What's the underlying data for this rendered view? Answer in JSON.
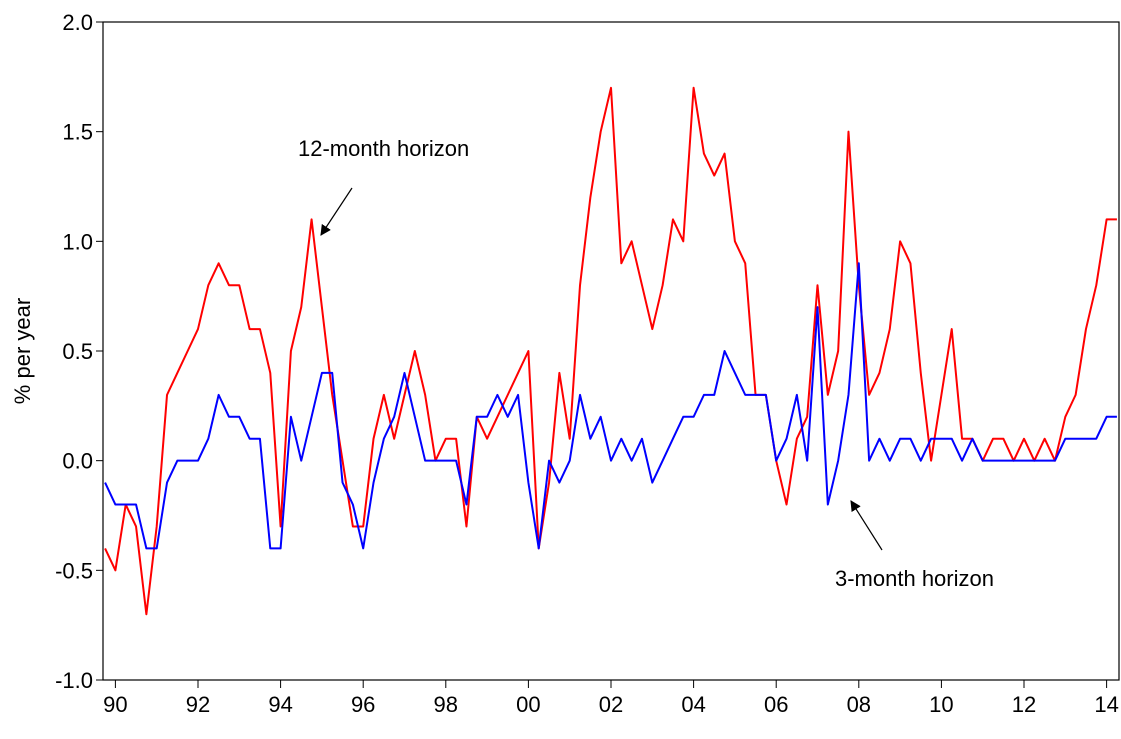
{
  "chart_data": {
    "type": "line",
    "y_label": "% per year",
    "annotations": [
      "12-month horizon",
      "3-month horizon"
    ],
    "xlim": [
      1989.7,
      2014.3
    ],
    "ylim": [
      -1,
      2
    ],
    "xticks": [
      {
        "value": 1990,
        "label": "90"
      },
      {
        "value": 1992,
        "label": "92"
      },
      {
        "value": 1994,
        "label": "94"
      },
      {
        "value": 1996,
        "label": "96"
      },
      {
        "value": 1998,
        "label": "98"
      },
      {
        "value": 2000,
        "label": "00"
      },
      {
        "value": 2002,
        "label": "02"
      },
      {
        "value": 2004,
        "label": "04"
      },
      {
        "value": 2006,
        "label": "06"
      },
      {
        "value": 2008,
        "label": "08"
      },
      {
        "value": 2010,
        "label": "10"
      },
      {
        "value": 2012,
        "label": "12"
      },
      {
        "value": 2014,
        "label": "14"
      }
    ],
    "yticks": [
      {
        "value": -1,
        "label": "-1.0"
      },
      -0.5,
      {
        "value": 0,
        "label": "0.0"
      },
      0.5,
      {
        "value": 1,
        "label": "1.0"
      },
      1.5,
      {
        "value": 2,
        "label": "2.0"
      }
    ],
    "x": [
      1989.75,
      1990.0,
      1990.25,
      1990.5,
      1990.75,
      1991.0,
      1991.25,
      1991.5,
      1991.75,
      1992.0,
      1992.25,
      1992.5,
      1992.75,
      1993.0,
      1993.25,
      1993.5,
      1993.75,
      1994.0,
      1994.25,
      1994.5,
      1994.75,
      1995.0,
      1995.25,
      1995.5,
      1995.75,
      1996.0,
      1996.25,
      1996.5,
      1996.75,
      1997.0,
      1997.25,
      1997.5,
      1997.75,
      1998.0,
      1998.25,
      1998.5,
      1998.75,
      1999.0,
      1999.25,
      1999.5,
      1999.75,
      2000.0,
      2000.25,
      2000.5,
      2000.75,
      2001.0,
      2001.25,
      2001.5,
      2001.75,
      2002.0,
      2002.25,
      2002.5,
      2002.75,
      2003.0,
      2003.25,
      2003.5,
      2003.75,
      2004.0,
      2004.25,
      2004.5,
      2004.75,
      2005.0,
      2005.25,
      2005.5,
      2005.75,
      2006.0,
      2006.25,
      2006.5,
      2006.75,
      2007.0,
      2007.25,
      2007.5,
      2007.75,
      2008.0,
      2008.25,
      2008.5,
      2008.75,
      2009.0,
      2009.25,
      2009.5,
      2009.75,
      2010.0,
      2010.25,
      2010.5,
      2010.75,
      2011.0,
      2011.25,
      2011.5,
      2011.75,
      2012.0,
      2012.25,
      2012.5,
      2012.75,
      2013.0,
      2013.25,
      2013.5,
      2013.75,
      2014.0,
      2014.25
    ],
    "series": [
      {
        "name": "12-month horizon",
        "color": "#ff0000",
        "values": [
          -0.4,
          -0.5,
          -0.2,
          -0.3,
          -0.7,
          -0.3,
          0.3,
          0.4,
          0.5,
          0.6,
          0.8,
          0.9,
          0.8,
          0.8,
          0.6,
          0.6,
          0.4,
          -0.3,
          0.5,
          0.7,
          1.1,
          0.7,
          0.3,
          0.0,
          -0.3,
          -0.3,
          0.1,
          0.3,
          0.1,
          0.3,
          0.5,
          0.3,
          0.0,
          0.1,
          0.1,
          -0.3,
          0.2,
          0.1,
          0.2,
          0.3,
          0.4,
          0.5,
          -0.4,
          -0.1,
          0.4,
          0.1,
          0.8,
          1.2,
          1.5,
          1.7,
          0.9,
          1.0,
          0.8,
          0.6,
          0.8,
          1.1,
          1.0,
          1.7,
          1.4,
          1.3,
          1.4,
          1.0,
          0.9,
          0.3,
          0.3,
          0.0,
          -0.2,
          0.1,
          0.2,
          0.8,
          0.3,
          0.5,
          1.5,
          0.8,
          0.3,
          0.4,
          0.6,
          1.0,
          0.9,
          0.4,
          0.0,
          0.3,
          0.6,
          0.1,
          0.1,
          0.0,
          0.1,
          0.1,
          0.0,
          0.1,
          0.0,
          0.1,
          0.0,
          0.2,
          0.3,
          0.6,
          0.8,
          1.1,
          1.1
        ]
      },
      {
        "name": "3-month horizon",
        "color": "#0000ff",
        "values": [
          -0.1,
          -0.2,
          -0.2,
          -0.2,
          -0.4,
          -0.4,
          -0.1,
          0.0,
          0.0,
          0.0,
          0.1,
          0.3,
          0.2,
          0.2,
          0.1,
          0.1,
          -0.4,
          -0.4,
          0.2,
          0.0,
          0.2,
          0.4,
          0.4,
          -0.1,
          -0.2,
          -0.4,
          -0.1,
          0.1,
          0.2,
          0.4,
          0.2,
          0.0,
          0.0,
          0.0,
          0.0,
          -0.2,
          0.2,
          0.2,
          0.3,
          0.2,
          0.3,
          -0.1,
          -0.4,
          0.0,
          -0.1,
          0.0,
          0.3,
          0.1,
          0.2,
          0.0,
          0.1,
          0.0,
          0.1,
          -0.1,
          0.0,
          0.1,
          0.2,
          0.2,
          0.3,
          0.3,
          0.5,
          0.4,
          0.3,
          0.3,
          0.3,
          0.0,
          0.1,
          0.3,
          0.0,
          0.7,
          -0.2,
          0.0,
          0.3,
          0.9,
          0.0,
          0.1,
          0.0,
          0.1,
          0.1,
          0.0,
          0.1,
          0.1,
          0.1,
          0.0,
          0.1,
          0.0,
          0.0,
          0.0,
          0.0,
          0.0,
          0.0,
          0.0,
          0.0,
          0.1,
          0.1,
          0.1,
          0.1,
          0.2,
          0.2
        ]
      }
    ]
  }
}
